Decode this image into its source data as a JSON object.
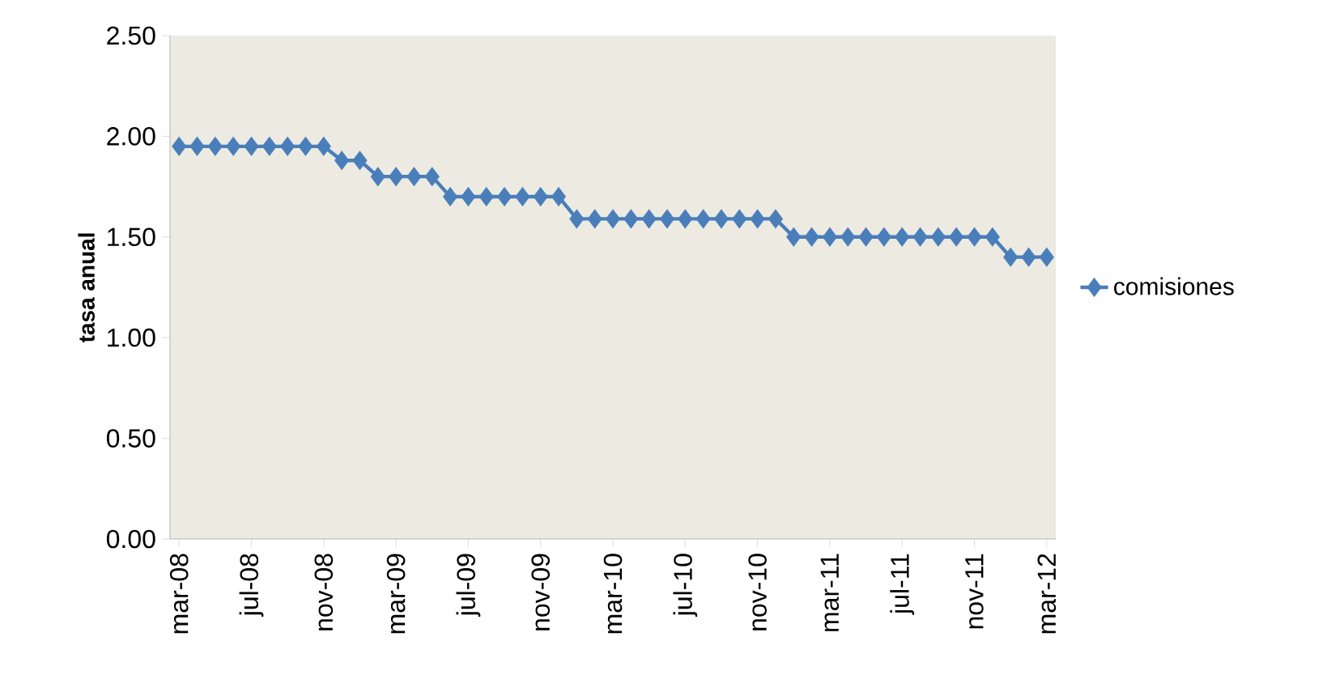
{
  "chart_data": {
    "type": "line",
    "ylabel": "tasa anual",
    "categories": [
      "mar-08",
      null,
      null,
      null,
      "jul-08",
      null,
      null,
      null,
      "nov-08",
      null,
      null,
      null,
      "mar-09",
      null,
      null,
      null,
      "jul-09",
      null,
      null,
      null,
      "nov-09",
      null,
      null,
      null,
      "mar-10",
      null,
      null,
      null,
      "jul-10",
      null,
      null,
      null,
      "nov-10",
      null,
      null,
      null,
      "mar-11",
      null,
      null,
      null,
      "jul-11",
      null,
      null,
      null,
      "nov-11",
      null,
      null,
      null,
      "mar-12"
    ],
    "series": [
      {
        "name": "comisiones",
        "color": "#4a7ebb",
        "values": [
          1.95,
          1.95,
          1.95,
          1.95,
          1.95,
          1.95,
          1.95,
          1.95,
          1.95,
          1.88,
          1.88,
          1.8,
          1.8,
          1.8,
          1.8,
          1.7,
          1.7,
          1.7,
          1.7,
          1.7,
          1.7,
          1.7,
          1.59,
          1.59,
          1.59,
          1.59,
          1.59,
          1.59,
          1.59,
          1.59,
          1.59,
          1.59,
          1.59,
          1.59,
          1.5,
          1.5,
          1.5,
          1.5,
          1.5,
          1.5,
          1.5,
          1.5,
          1.5,
          1.5,
          1.5,
          1.5,
          1.4,
          1.4,
          1.4
        ]
      }
    ],
    "ylim": [
      0,
      2.5
    ],
    "yticks": [
      {
        "value": 0,
        "label": "0.00"
      },
      {
        "value": 0.5,
        "label": "0.50"
      },
      {
        "value": 1,
        "label": "1.00"
      },
      {
        "value": 1.5,
        "label": "1.50"
      },
      {
        "value": 2,
        "label": "2.00"
      },
      {
        "value": 2.5,
        "label": "2.50"
      }
    ],
    "grid": false,
    "legend": "right",
    "marker": "diamond",
    "line_style": "solid"
  }
}
